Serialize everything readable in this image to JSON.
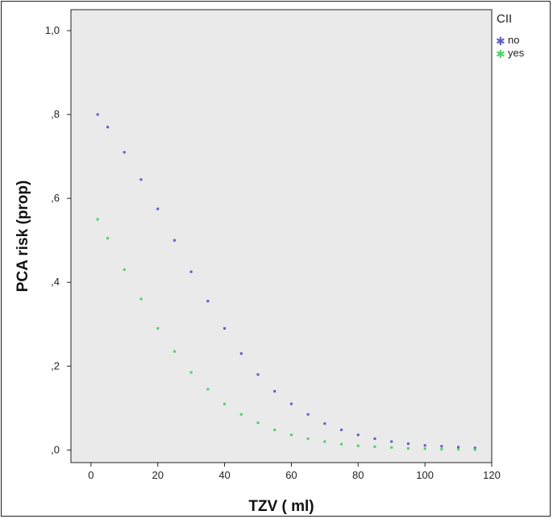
{
  "chart_data": {
    "type": "scatter",
    "title": "",
    "xlabel": "TZV ( ml)",
    "ylabel": "PCA risk (prop)",
    "xlim": [
      -6,
      120
    ],
    "ylim": [
      -0.03,
      1.05
    ],
    "x_ticks": [
      0,
      20,
      40,
      60,
      80,
      100,
      120
    ],
    "x_tick_labels": [
      "0",
      "20",
      "40",
      "60",
      "80",
      "100",
      "120"
    ],
    "y_ticks": [
      0,
      0.2,
      0.4,
      0.6,
      0.8,
      1.0
    ],
    "y_tick_labels": [
      ",0",
      ",2",
      ",4",
      ",6",
      ",8",
      "1,0"
    ],
    "grid": false,
    "legend": {
      "title": "CII",
      "position": "top-right"
    },
    "marker": "star",
    "colors": {
      "plot_bg": "#eaeaea",
      "no": "#5a5ec8",
      "yes": "#4cd16a"
    },
    "series": [
      {
        "name": "no",
        "color": "#5a5ec8",
        "x": [
          2,
          5,
          10,
          15,
          20,
          25,
          30,
          35,
          40,
          45,
          50,
          55,
          60,
          65,
          70,
          75,
          80,
          85,
          90,
          95,
          100,
          105,
          110,
          115
        ],
        "y": [
          0.8,
          0.77,
          0.71,
          0.645,
          0.575,
          0.5,
          0.425,
          0.355,
          0.29,
          0.23,
          0.18,
          0.14,
          0.11,
          0.085,
          0.063,
          0.048,
          0.036,
          0.027,
          0.02,
          0.015,
          0.011,
          0.009,
          0.007,
          0.005
        ]
      },
      {
        "name": "yes",
        "color": "#4cd16a",
        "x": [
          2,
          5,
          10,
          15,
          20,
          25,
          30,
          35,
          40,
          45,
          50,
          55,
          60,
          65,
          70,
          75,
          80,
          85,
          90,
          95,
          100,
          105,
          110,
          115
        ],
        "y": [
          0.55,
          0.505,
          0.43,
          0.36,
          0.29,
          0.235,
          0.185,
          0.145,
          0.11,
          0.085,
          0.065,
          0.048,
          0.036,
          0.027,
          0.02,
          0.014,
          0.01,
          0.008,
          0.006,
          0.004,
          0.003,
          0.002,
          0.002,
          0.001
        ]
      }
    ]
  }
}
